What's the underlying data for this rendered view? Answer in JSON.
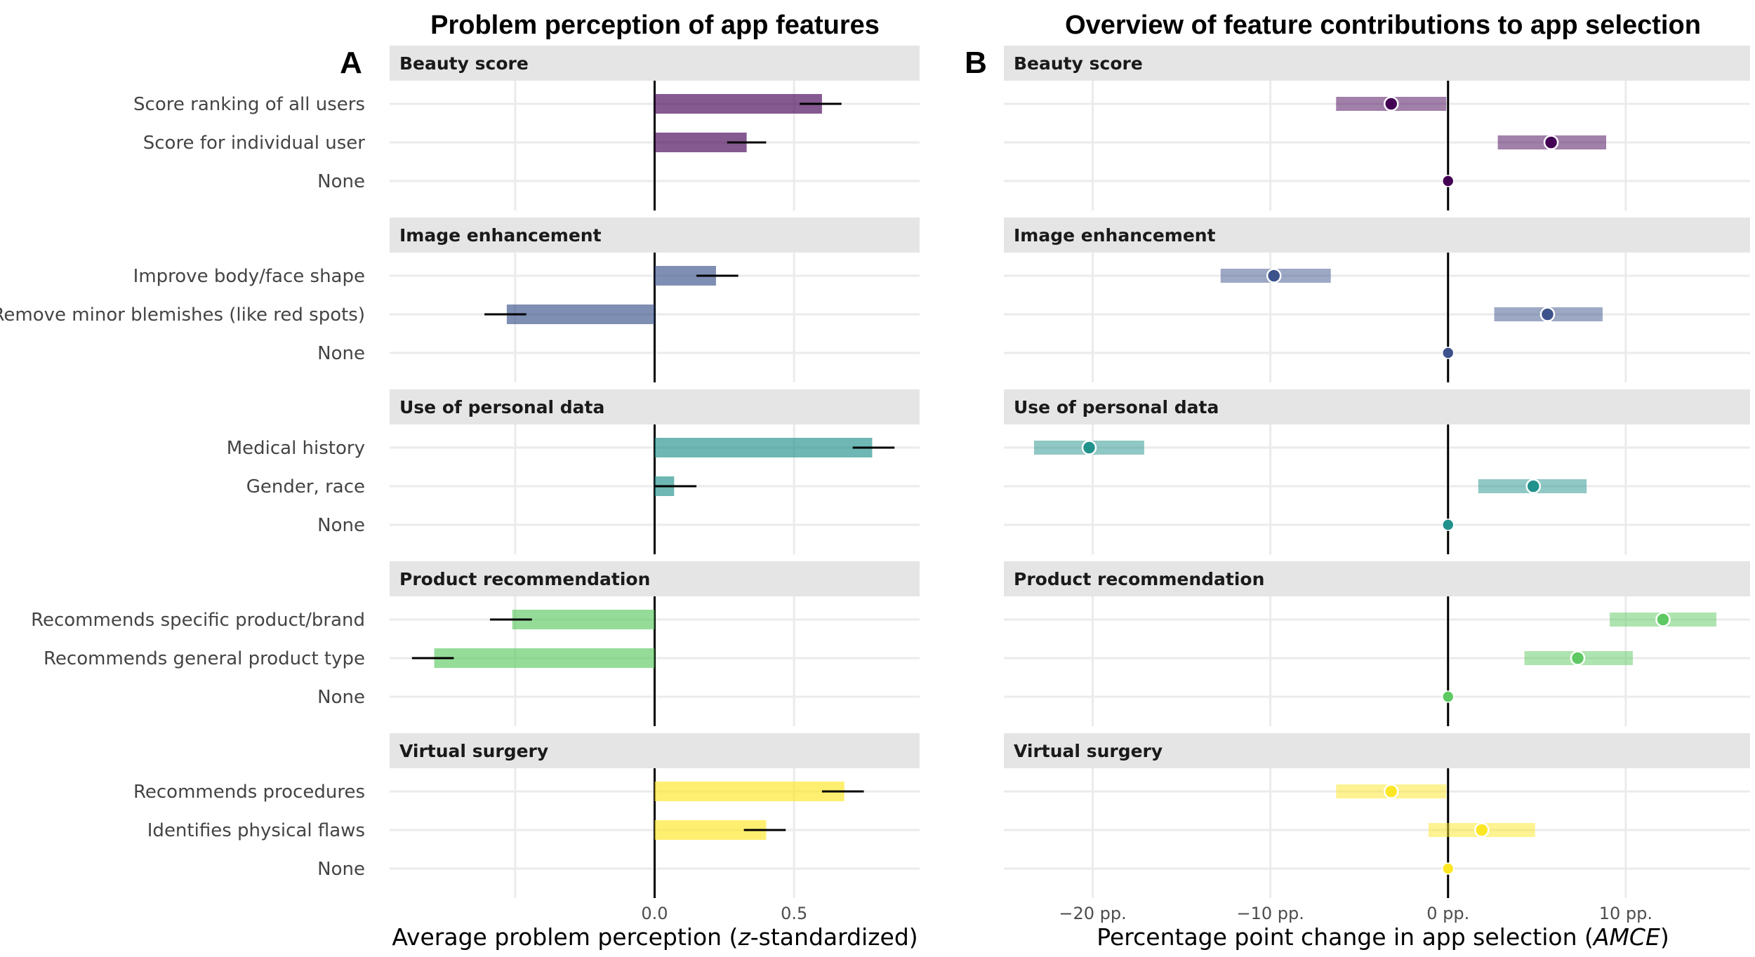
{
  "chart_data": [
    {
      "type": "bar",
      "panel_tag": "A",
      "title": "Problem perception of app features",
      "xlabel_parts": [
        "Average problem perception (",
        "z",
        "-standardized)"
      ],
      "xlim": [
        -0.95,
        0.95
      ],
      "xticks": [
        {
          "value": -0.5,
          "label": ""
        },
        {
          "value": 0.0,
          "label": "0.0"
        },
        {
          "value": 0.5,
          "label": "0.5"
        }
      ],
      "groups": [
        {
          "name": "Beauty score",
          "color": "#440154",
          "levels": [
            {
              "label": "Score ranking of all users",
              "value": 0.6,
              "ci": [
                0.52,
                0.67
              ]
            },
            {
              "label": "Score for individual user",
              "value": 0.33,
              "ci": [
                0.26,
                0.4
              ]
            },
            {
              "label": "None",
              "value": null,
              "ci": null
            }
          ]
        },
        {
          "name": "Image enhancement",
          "color": "#3b528b",
          "levels": [
            {
              "label": "Improve body/face shape",
              "value": 0.22,
              "ci": [
                0.15,
                0.3
              ]
            },
            {
              "label": "Remove minor blemishes (like red spots)",
              "value": -0.53,
              "ci": [
                -0.61,
                -0.46
              ]
            },
            {
              "label": "None",
              "value": null,
              "ci": null
            }
          ]
        },
        {
          "name": "Use of personal data",
          "color": "#21918c",
          "levels": [
            {
              "label": "Medical history",
              "value": 0.78,
              "ci": [
                0.71,
                0.86
              ]
            },
            {
              "label": "Gender, race",
              "value": 0.07,
              "ci": [
                0.0,
                0.15
              ]
            },
            {
              "label": "None",
              "value": null,
              "ci": null
            }
          ]
        },
        {
          "name": "Product recommendation",
          "color": "#5ec962",
          "levels": [
            {
              "label": "Recommends specific product/brand",
              "value": -0.51,
              "ci": [
                -0.59,
                -0.44
              ]
            },
            {
              "label": "Recommends general product type",
              "value": -0.79,
              "ci": [
                -0.87,
                -0.72
              ]
            },
            {
              "label": "None",
              "value": null,
              "ci": null
            }
          ]
        },
        {
          "name": "Virtual surgery",
          "color": "#fde725",
          "levels": [
            {
              "label": "Recommends procedures",
              "value": 0.68,
              "ci": [
                0.6,
                0.75
              ]
            },
            {
              "label": "Identifies physical flaws",
              "value": 0.4,
              "ci": [
                0.32,
                0.47
              ]
            },
            {
              "label": "None",
              "value": null,
              "ci": null
            }
          ]
        }
      ]
    },
    {
      "type": "dot-interval",
      "panel_tag": "B",
      "title": "Overview of feature contributions to app selection",
      "xlabel_parts": [
        "Percentage point change in app selection (",
        "AMCE",
        ")"
      ],
      "xlim": [
        -25,
        17
      ],
      "xticks": [
        {
          "value": -20,
          "label": "−20 pp."
        },
        {
          "value": -10,
          "label": "−10 pp."
        },
        {
          "value": 0,
          "label": "0 pp."
        },
        {
          "value": 10,
          "label": "10 pp."
        }
      ],
      "groups": [
        {
          "name": "Beauty score",
          "color": "#440154",
          "levels": [
            {
              "label": "Score ranking of all users",
              "value": -3.2,
              "ci": [
                -6.3,
                -0.1
              ]
            },
            {
              "label": "Score for individual user",
              "value": 5.8,
              "ci": [
                2.8,
                8.9
              ]
            },
            {
              "label": "None",
              "value": 0,
              "ci": null
            }
          ]
        },
        {
          "name": "Image enhancement",
          "color": "#3b528b",
          "levels": [
            {
              "label": "Improve body/face shape",
              "value": -9.8,
              "ci": [
                -12.8,
                -6.6
              ]
            },
            {
              "label": "Remove minor blemishes (like red spots)",
              "value": 5.6,
              "ci": [
                2.6,
                8.7
              ]
            },
            {
              "label": "None",
              "value": 0,
              "ci": null
            }
          ]
        },
        {
          "name": "Use of personal data",
          "color": "#21918c",
          "levels": [
            {
              "label": "Medical history",
              "value": -20.2,
              "ci": [
                -23.3,
                -17.1
              ]
            },
            {
              "label": "Gender, race",
              "value": 4.8,
              "ci": [
                1.7,
                7.8
              ]
            },
            {
              "label": "None",
              "value": 0,
              "ci": null
            }
          ]
        },
        {
          "name": "Product recommendation",
          "color": "#5ec962",
          "levels": [
            {
              "label": "Recommends specific product/brand",
              "value": 12.1,
              "ci": [
                9.1,
                15.1
              ]
            },
            {
              "label": "Recommends general product type",
              "value": 7.3,
              "ci": [
                4.3,
                10.4
              ]
            },
            {
              "label": "None",
              "value": 0,
              "ci": null
            }
          ]
        },
        {
          "name": "Virtual surgery",
          "color": "#fde725",
          "levels": [
            {
              "label": "Recommends procedures",
              "value": -3.2,
              "ci": [
                -6.3,
                -0.1
              ]
            },
            {
              "label": "Identifies physical flaws",
              "value": 1.9,
              "ci": [
                -1.1,
                4.9
              ]
            },
            {
              "label": "None",
              "value": 0,
              "ci": null
            }
          ]
        }
      ]
    }
  ]
}
